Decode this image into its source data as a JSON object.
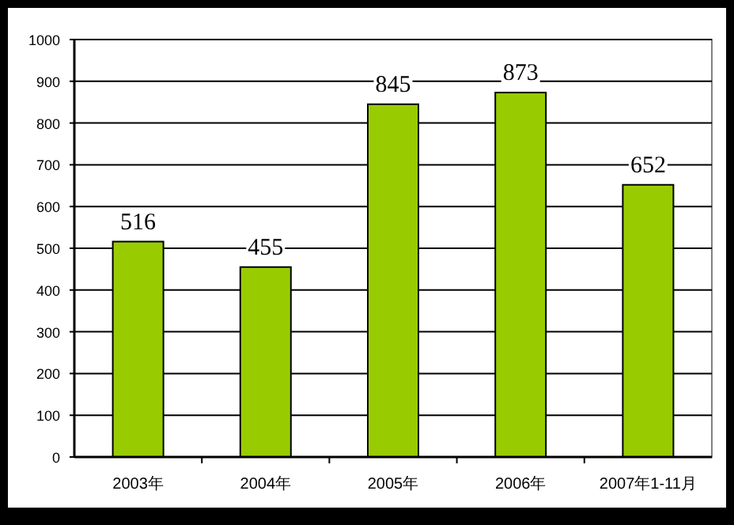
{
  "chart_data": {
    "type": "bar",
    "categories": [
      "2003年",
      "2004年",
      "2005年",
      "2006年",
      "2007年1-11月"
    ],
    "values": [
      516,
      455,
      845,
      873,
      652
    ],
    "color": "#99cc00",
    "data_labels": true,
    "ylim": [
      0,
      1000
    ],
    "yticks": [
      0,
      100,
      200,
      300,
      400,
      500,
      600,
      700,
      800,
      900,
      1000
    ],
    "grid": "y"
  }
}
